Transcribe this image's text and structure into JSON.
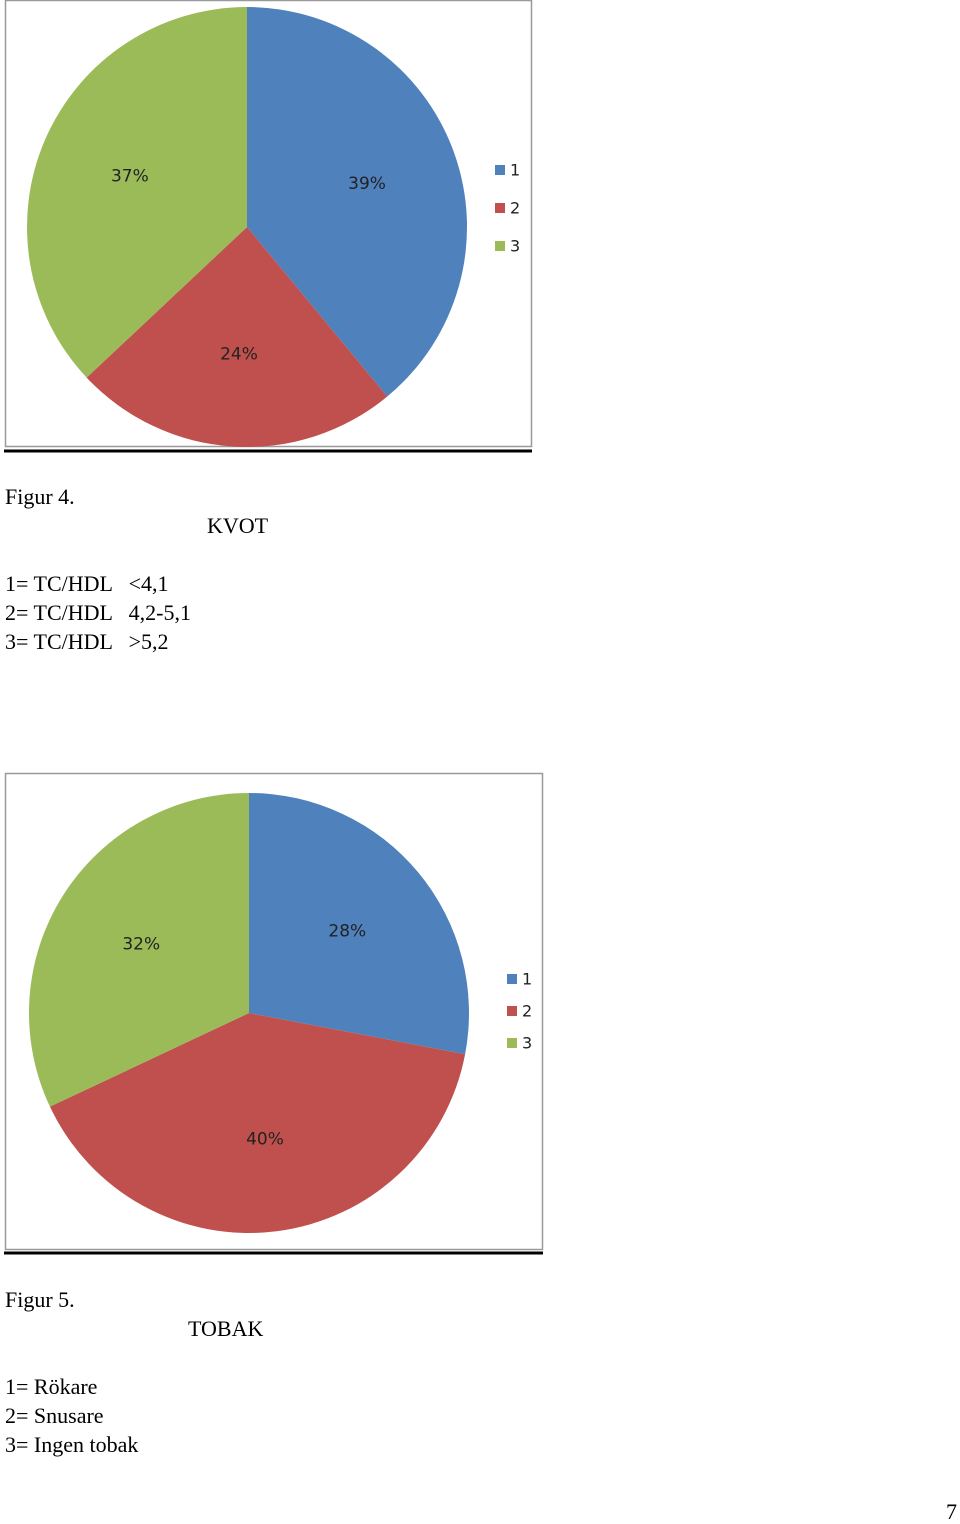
{
  "chart_data": [
    {
      "type": "pie",
      "caption": "Figur 4.",
      "title": "KVOT",
      "categories": [
        "1",
        "2",
        "3"
      ],
      "values": [
        39,
        24,
        37
      ],
      "value_labels": [
        "39%",
        "24%",
        "37%"
      ],
      "colors": [
        "#4f81bd",
        "#c0504d",
        "#9bbb59"
      ],
      "notes": [
        "1= TC/HDL   <4,1",
        "2= TC/HDL   4,2-5,1",
        "3= TC/HDL   >5,2"
      ]
    },
    {
      "type": "pie",
      "caption": "Figur 5.",
      "title": "TOBAK",
      "categories": [
        "1",
        "2",
        "3"
      ],
      "values": [
        28,
        40,
        32
      ],
      "value_labels": [
        "28%",
        "40%",
        "32%"
      ],
      "colors": [
        "#4f81bd",
        "#c0504d",
        "#9bbb59"
      ],
      "notes": [
        "1= Rökare",
        "2= Snusare",
        "3= Ingen tobak"
      ]
    }
  ],
  "page_number": "7"
}
